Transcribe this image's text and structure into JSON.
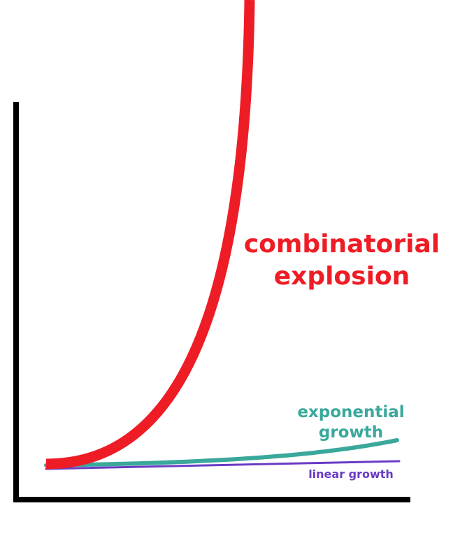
{
  "chart_data": {
    "type": "line",
    "title": "",
    "xlabel": "",
    "ylabel": "",
    "axis_ticks": "none",
    "grid": false,
    "legend": "none",
    "series": [
      {
        "name": "combinatorial explosion",
        "label_lines": [
          "combinatorial",
          "explosion"
        ],
        "color": "#ee1c25",
        "curve": "steep super-exponential rise, leaving the top of the chart"
      },
      {
        "name": "exponential growth",
        "label_lines": [
          "exponential",
          "growth"
        ],
        "color": "#3aa89b",
        "curve": "gentle upward curve"
      },
      {
        "name": "linear growth",
        "label_lines": [
          "linear growth"
        ],
        "color": "#6a3bc4",
        "curve": "nearly flat straight line"
      }
    ],
    "axes_color": "#000000"
  }
}
